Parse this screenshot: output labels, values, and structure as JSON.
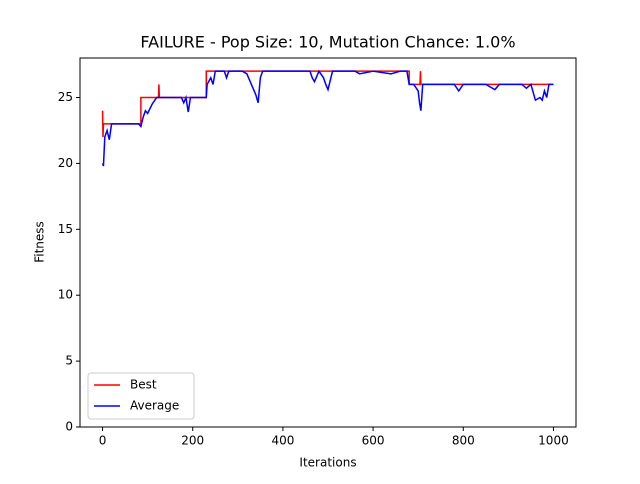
{
  "chart_data": {
    "type": "line",
    "title": "FAILURE - Pop Size: 10, Mutation Chance: 1.0%",
    "x_label": "Iterations",
    "y_label": "Fitness",
    "xlim": [
      -50,
      1050
    ],
    "ylim": [
      0,
      28
    ],
    "xticks": [
      0,
      200,
      400,
      600,
      800,
      1000
    ],
    "yticks": [
      0,
      5,
      10,
      15,
      20,
      25
    ],
    "legend": "lower left",
    "series": [
      {
        "name": "Best",
        "color": "#ff0000",
        "x": [
          0,
          1,
          2,
          85,
          85,
          124,
          125,
          126,
          230,
          230,
          680,
          680,
          704,
          705,
          706,
          1000
        ],
        "values": [
          24,
          22,
          23,
          23,
          25,
          25,
          26,
          25,
          25,
          27,
          27,
          26,
          26,
          27,
          26,
          26
        ]
      },
      {
        "name": "Average",
        "color": "#0000ff",
        "x": [
          0,
          2,
          5,
          10,
          15,
          20,
          40,
          80,
          85,
          90,
          95,
          100,
          110,
          120,
          150,
          175,
          180,
          185,
          190,
          195,
          230,
          232,
          240,
          245,
          250,
          270,
          275,
          280,
          310,
          320,
          330,
          340,
          345,
          350,
          355,
          400,
          430,
          460,
          465,
          470,
          480,
          490,
          495,
          500,
          505,
          510,
          560,
          570,
          600,
          640,
          660,
          675,
          680,
          690,
          700,
          703,
          706,
          710,
          760,
          780,
          790,
          800,
          850,
          870,
          880,
          930,
          940,
          950,
          960,
          970,
          975,
          980,
          985,
          990,
          1000
        ],
        "values": [
          20,
          19.8,
          22,
          22.5,
          21.8,
          23,
          23,
          23,
          22.8,
          23.5,
          24,
          23.8,
          24.5,
          25,
          25,
          25,
          24.6,
          25,
          23.9,
          25,
          25,
          26,
          26.5,
          26,
          27,
          27,
          26.5,
          27,
          27,
          26.8,
          26,
          25.2,
          24.6,
          26.5,
          27,
          27,
          27,
          27,
          26.5,
          26.2,
          27,
          26.5,
          26,
          25.6,
          26.3,
          27,
          27,
          26.8,
          27,
          26.8,
          27,
          27,
          26,
          26,
          25.5,
          24.6,
          24,
          26,
          26,
          26,
          25.5,
          26,
          26,
          25.6,
          26,
          26,
          25.7,
          26,
          24.8,
          25,
          24.8,
          25.5,
          25,
          26,
          26
        ]
      }
    ]
  }
}
